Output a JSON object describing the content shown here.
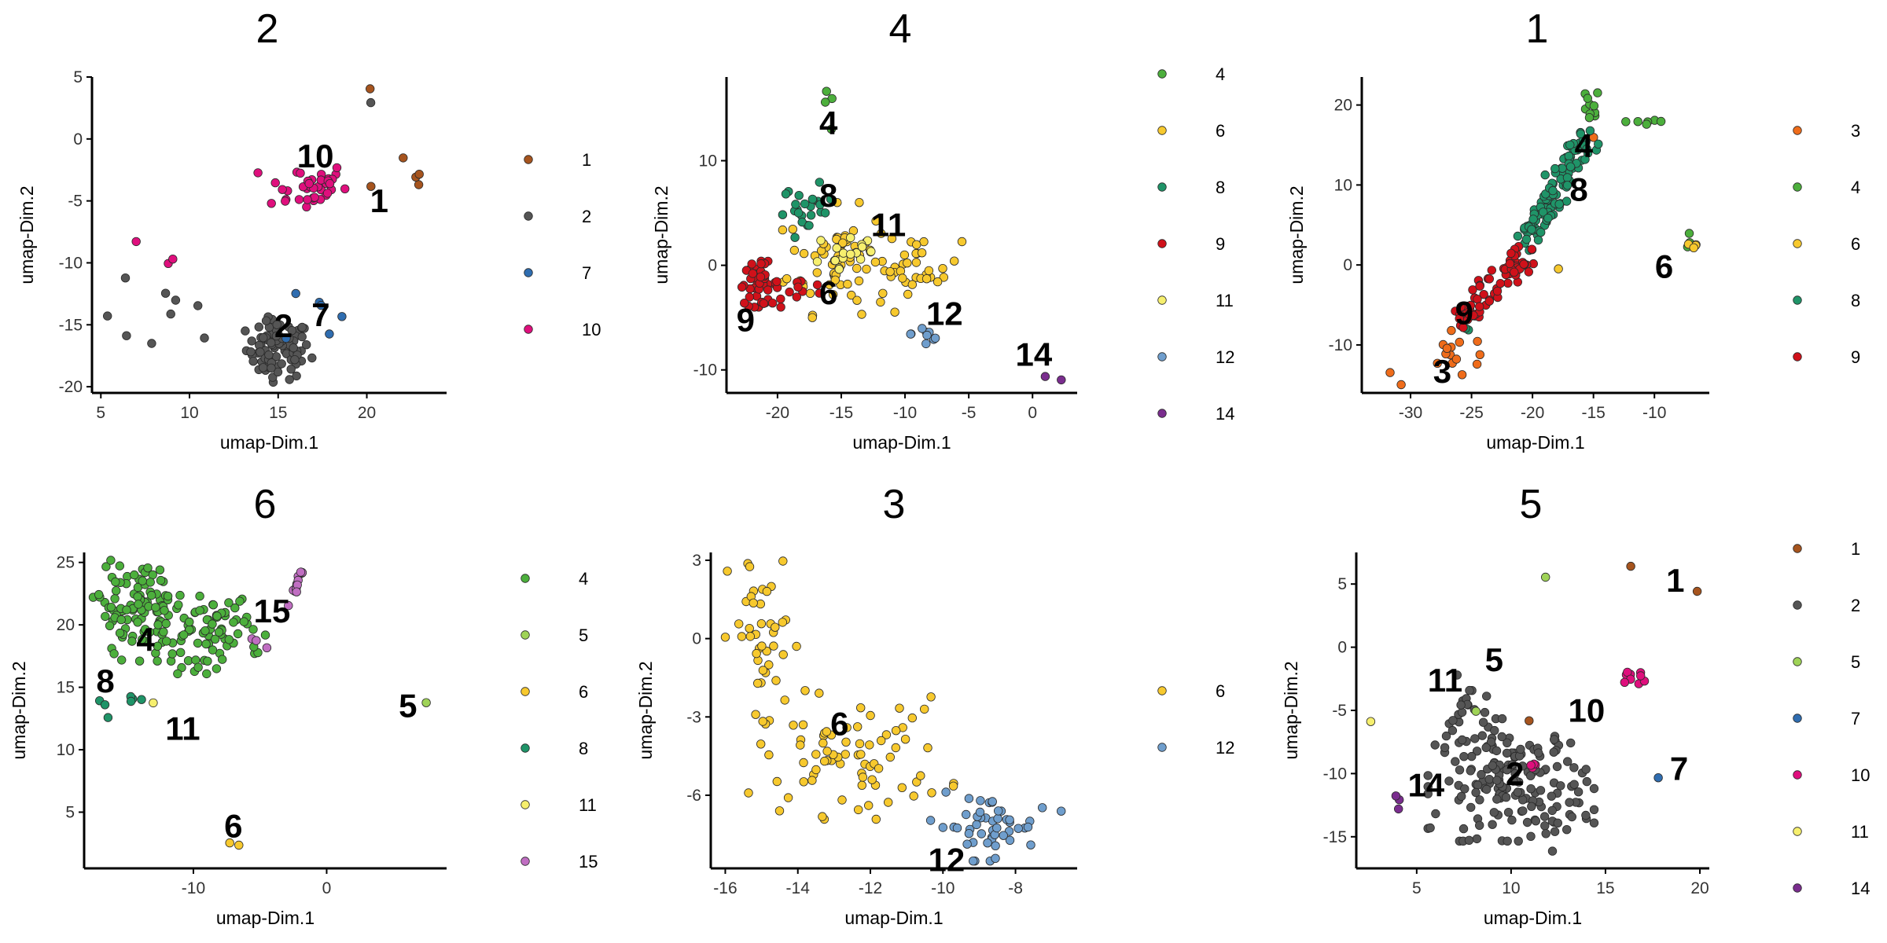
{
  "colors": {
    "1": "#a6541e",
    "2": "#555555",
    "3": "#ef6c1a",
    "4": "#4caf3c",
    "5": "#9fd357",
    "6": "#f7c92e",
    "7": "#2f6db0",
    "8": "#1f9468",
    "9": "#d0111a",
    "10": "#df0f7d",
    "11": "#f6ef6e",
    "12": "#6f9ecd",
    "14": "#7a2d8e",
    "15": "#c06ec2"
  },
  "chart_data": [
    {
      "type": "scatter",
      "title": "2",
      "xlabel": "umap-Dim.1",
      "ylabel": "umap-Dim.2",
      "xlim": [
        4.5,
        24.5
      ],
      "ylim": [
        -20.5,
        5
      ],
      "xticks": [
        5,
        10,
        15,
        20
      ],
      "yticks": [
        5,
        0,
        -5,
        -10,
        -15,
        -20
      ],
      "legend": [
        "1",
        "2",
        "7",
        "10"
      ],
      "labels": [
        {
          "text": "10",
          "x": 17.1,
          "y": -2.3
        },
        {
          "text": "1",
          "x": 20.7,
          "y": -5.9
        },
        {
          "text": "2",
          "x": 15.3,
          "y": -16.0
        },
        {
          "text": "7",
          "x": 17.4,
          "y": -15.1
        }
      ],
      "series": [
        {
          "name": "1",
          "clusters": [
            {
              "cx": 20.2,
              "cy": 4.0,
              "sx": 0.05,
              "sy": 0.05,
              "n": 1
            },
            {
              "cx": 22.5,
              "cy": -3.2,
              "sx": 1.1,
              "sy": 1.2,
              "n": 5
            }
          ]
        },
        {
          "name": "2",
          "clusters": [
            {
              "cx": 15.0,
              "cy": -17.0,
              "sx": 0.9,
              "sy": 1.2,
              "n": 90
            },
            {
              "cx": 8.5,
              "cy": -14.7,
              "sx": 1.8,
              "sy": 1.6,
              "n": 9
            },
            {
              "cx": 20.2,
              "cy": 3.0,
              "sx": 0.05,
              "sy": 0.05,
              "n": 1
            }
          ]
        },
        {
          "name": "7",
          "clusters": [
            {
              "cx": 18.3,
              "cy": -14.0,
              "sx": 1.5,
              "sy": 1.4,
              "n": 6
            }
          ]
        },
        {
          "name": "10",
          "clusters": [
            {
              "cx": 16.5,
              "cy": -3.8,
              "sx": 1.2,
              "sy": 1.0,
              "n": 38
            },
            {
              "cx": 9.5,
              "cy": -9.5,
              "sx": 2.5,
              "sy": 1.5,
              "n": 3
            }
          ]
        }
      ]
    },
    {
      "type": "scatter",
      "title": "4",
      "xlabel": "umap-Dim.1",
      "ylabel": "umap-Dim.2",
      "xlim": [
        -24,
        3.5
      ],
      "ylim": [
        -12.2,
        18
      ],
      "xticks": [
        -20,
        -15,
        -10,
        -5,
        0
      ],
      "yticks": [
        10,
        0,
        -10
      ],
      "legend": [
        "4",
        "6",
        "8",
        "9",
        "11",
        "12",
        "14"
      ],
      "labels": [
        {
          "text": "4",
          "x": -16.0,
          "y": 12.5
        },
        {
          "text": "8",
          "x": -16.0,
          "y": 5.6
        },
        {
          "text": "11",
          "x": -11.3,
          "y": 2.8
        },
        {
          "text": "6",
          "x": -16.0,
          "y": -3.7
        },
        {
          "text": "9",
          "x": -22.5,
          "y": -6.3
        },
        {
          "text": "12",
          "x": -6.9,
          "y": -5.7
        },
        {
          "text": "14",
          "x": 0.1,
          "y": -9.6
        }
      ],
      "series": [
        {
          "name": "4",
          "clusters": [
            {
              "cx": -15.7,
              "cy": 15.0,
              "sx": 0.6,
              "sy": 1.6,
              "n": 4
            }
          ]
        },
        {
          "name": "6",
          "clusters": [
            {
              "cx": -15.2,
              "cy": 0.5,
              "sx": 2.0,
              "sy": 2.5,
              "n": 70
            },
            {
              "cx": -8.8,
              "cy": 0.0,
              "sx": 1.6,
              "sy": 1.3,
              "n": 30
            }
          ]
        },
        {
          "name": "8",
          "clusters": [
            {
              "cx": -17.6,
              "cy": 5.3,
              "sx": 1.0,
              "sy": 1.2,
              "n": 24
            }
          ]
        },
        {
          "name": "9",
          "clusters": [
            {
              "cx": -21.5,
              "cy": -1.8,
              "sx": 0.8,
              "sy": 1.0,
              "n": 45
            },
            {
              "cx": -18.0,
              "cy": -2.5,
              "sx": 1.2,
              "sy": 0.6,
              "n": 10
            }
          ]
        },
        {
          "name": "11",
          "clusters": [
            {
              "cx": -14.5,
              "cy": 1.2,
              "sx": 1.5,
              "sy": 1.4,
              "n": 18
            }
          ]
        },
        {
          "name": "12",
          "clusters": [
            {
              "cx": -8.3,
              "cy": -6.5,
              "sx": 0.6,
              "sy": 0.9,
              "n": 9
            }
          ]
        },
        {
          "name": "14",
          "clusters": [
            {
              "cx": 2.3,
              "cy": -10.9,
              "sx": 0.05,
              "sy": 0.05,
              "n": 1
            },
            {
              "cx": 1.0,
              "cy": -10.6,
              "sx": 0.05,
              "sy": 0.05,
              "n": 1
            }
          ]
        }
      ]
    },
    {
      "type": "scatter",
      "title": "1",
      "xlabel": "umap-Dim.1",
      "ylabel": "umap-Dim.2",
      "xlim": [
        -34,
        -5.5
      ],
      "ylim": [
        -16,
        23.5
      ],
      "xticks": [
        -30,
        -25,
        -20,
        -15,
        -10
      ],
      "yticks": [
        20,
        10,
        0,
        -10
      ],
      "legend": [
        "3",
        "4",
        "6",
        "8",
        "9"
      ],
      "labels": [
        {
          "text": "4",
          "x": -15.8,
          "y": 13.5
        },
        {
          "text": "8",
          "x": -16.2,
          "y": 8.0
        },
        {
          "text": "6",
          "x": -9.2,
          "y": -1.6
        },
        {
          "text": "9",
          "x": -25.6,
          "y": -7.4
        },
        {
          "text": "3",
          "x": -27.4,
          "y": -14.7
        }
      ],
      "series": [
        {
          "name": "3",
          "clusters": [
            {
              "cx": -26.0,
              "cy": -11.5,
              "sx": 1.5,
              "sy": 1.5,
              "n": 14
            },
            {
              "cx": -31.5,
              "cy": -14.3,
              "sx": 0.8,
              "sy": 0.4,
              "n": 2
            },
            {
              "cx": -15.2,
              "cy": 16.0,
              "sx": 0.4,
              "sy": 0.3,
              "n": 2
            }
          ]
        },
        {
          "name": "4",
          "clusters": [
            {
              "cx": -15.3,
              "cy": 19.5,
              "sx": 0.4,
              "sy": 1.3,
              "n": 10
            },
            {
              "cx": -11.5,
              "cy": 17.7,
              "sx": 1.3,
              "sy": 0.3,
              "n": 6
            },
            {
              "cx": -7.0,
              "cy": 3.0,
              "sx": 0.3,
              "sy": 0.5,
              "n": 3
            }
          ]
        },
        {
          "name": "6",
          "clusters": [
            {
              "cx": -6.8,
              "cy": 2.3,
              "sx": 0.3,
              "sy": 0.2,
              "n": 4
            },
            {
              "cx": -17.8,
              "cy": -0.5,
              "sx": 0.05,
              "sy": 0.05,
              "n": 1
            }
          ]
        },
        {
          "name": "8",
          "line": {
            "x0": -20.5,
            "y0": 3.0,
            "x1": -15.5,
            "y1": 16.0,
            "spread": 1.0,
            "n": 110
          },
          "clusters": [
            {
              "cx": -25.5,
              "cy": -8.0,
              "sx": 0.3,
              "sy": 0.5,
              "n": 2
            }
          ]
        },
        {
          "name": "9",
          "line": {
            "x0": -26.0,
            "y0": -7.0,
            "x1": -20.5,
            "y1": 1.5,
            "spread": 0.9,
            "n": 80
          }
        }
      ]
    },
    {
      "type": "scatter",
      "title": "6",
      "xlabel": "umap-Dim.1",
      "ylabel": "umap-Dim.2",
      "xlim": [
        -18.2,
        9
      ],
      "ylim": [
        0.5,
        25.8
      ],
      "xticks": [
        -10,
        0
      ],
      "yticks": [
        25,
        20,
        15,
        10,
        5
      ],
      "legend": [
        "4",
        "5",
        "6",
        "8",
        "11",
        "15"
      ],
      "labels": [
        {
          "text": "15",
          "x": -4.1,
          "y": 20.2
        },
        {
          "text": "4",
          "x": -13.6,
          "y": 17.9
        },
        {
          "text": "8",
          "x": -16.6,
          "y": 14.6
        },
        {
          "text": "11",
          "x": -10.8,
          "y": 10.8
        },
        {
          "text": "5",
          "x": 6.1,
          "y": 12.6
        },
        {
          "text": "6",
          "x": -7.0,
          "y": 3.0
        }
      ],
      "series": [
        {
          "name": "4",
          "clusters": [
            {
              "cx": -14.0,
              "cy": 21.5,
              "sx": 1.6,
              "sy": 2.0,
              "n": 100
            },
            {
              "cx": -9.0,
              "cy": 19.0,
              "sx": 2.0,
              "sy": 1.5,
              "n": 80
            }
          ]
        },
        {
          "name": "5",
          "clusters": [
            {
              "cx": 7.5,
              "cy": 13.8,
              "sx": 0.05,
              "sy": 0.05,
              "n": 1
            }
          ]
        },
        {
          "name": "6",
          "clusters": [
            {
              "cx": -7.0,
              "cy": 2.4,
              "sx": 0.3,
              "sy": 0.1,
              "n": 2
            }
          ]
        },
        {
          "name": "8",
          "clusters": [
            {
              "cx": -16.6,
              "cy": 13.0,
              "sx": 0.2,
              "sy": 0.7,
              "n": 3
            },
            {
              "cx": -14.5,
              "cy": 14.0,
              "sx": 0.6,
              "sy": 0.3,
              "n": 4
            }
          ]
        },
        {
          "name": "11",
          "clusters": [
            {
              "cx": -13.0,
              "cy": 13.7,
              "sx": 0.05,
              "sy": 0.05,
              "n": 1
            }
          ]
        },
        {
          "name": "15",
          "line": {
            "x0": -3.2,
            "y0": 21.5,
            "x1": -1.8,
            "y1": 24.0,
            "spread": 0.25,
            "n": 14
          },
          "clusters": [
            {
              "cx": -5.5,
              "cy": 18.6,
              "sx": 0.5,
              "sy": 0.2,
              "n": 3
            }
          ]
        }
      ]
    },
    {
      "type": "scatter",
      "title": "3",
      "xlabel": "umap-Dim.1",
      "ylabel": "umap-Dim.2",
      "xlim": [
        -16.4,
        -6.3
      ],
      "ylim": [
        -8.8,
        3.3
      ],
      "xticks": [
        -16,
        -14,
        -12,
        -10,
        -8
      ],
      "yticks": [
        3,
        0,
        -3,
        -6
      ],
      "legend": [
        "6",
        "12"
      ],
      "labels": [
        {
          "text": "6",
          "x": -12.85,
          "y": -3.7
        },
        {
          "text": "12",
          "x": -9.9,
          "y": -8.9
        }
      ],
      "series": [
        {
          "name": "6",
          "clusters": [
            {
              "cx": -14.9,
              "cy": -0.2,
              "sx": 0.5,
              "sy": 1.9,
              "n": 45
            },
            {
              "cx": -12.5,
              "cy": -4.5,
              "sx": 1.3,
              "sy": 1.1,
              "n": 75
            }
          ]
        },
        {
          "name": "12",
          "clusters": [
            {
              "cx": -8.8,
              "cy": -7.2,
              "sx": 0.7,
              "sy": 0.6,
              "n": 48
            },
            {
              "cx": -6.7,
              "cy": -6.6,
              "sx": 0.05,
              "sy": 0.05,
              "n": 1
            }
          ]
        }
      ]
    },
    {
      "type": "scatter",
      "title": "5",
      "xlabel": "umap-Dim.1",
      "ylabel": "umap-Dim.2",
      "xlim": [
        1.8,
        20.5
      ],
      "ylim": [
        -17.5,
        7.5
      ],
      "xticks": [
        5,
        10,
        15,
        20
      ],
      "yticks": [
        5,
        0,
        -5,
        -10,
        -15
      ],
      "legend": [
        "1",
        "2",
        "5",
        "7",
        "10",
        "11",
        "14"
      ],
      "labels": [
        {
          "text": "1",
          "x": 18.7,
          "y": 4.4
        },
        {
          "text": "5",
          "x": 9.1,
          "y": -1.9
        },
        {
          "text": "11",
          "x": 6.5,
          "y": -3.5
        },
        {
          "text": "10",
          "x": 14.0,
          "y": -5.9
        },
        {
          "text": "7",
          "x": 18.9,
          "y": -10.5
        },
        {
          "text": "2",
          "x": 10.2,
          "y": -10.9
        },
        {
          "text": "14",
          "x": 5.5,
          "y": -11.8
        }
      ],
      "series": [
        {
          "name": "1",
          "clusters": [
            {
              "cx": 16.3,
              "cy": 6.4,
              "sx": 0.05,
              "sy": 0.05,
              "n": 1
            },
            {
              "cx": 19.8,
              "cy": 4.5,
              "sx": 0.05,
              "sy": 0.05,
              "n": 1
            },
            {
              "cx": 11.0,
              "cy": -5.8,
              "sx": 0.05,
              "sy": 0.05,
              "n": 1
            }
          ]
        },
        {
          "name": "2",
          "clusters": [
            {
              "cx": 10.0,
              "cy": -10.5,
              "sx": 2.0,
              "sy": 2.2,
              "n": 160
            },
            {
              "cx": 7.8,
              "cy": -5.5,
              "sx": 0.6,
              "sy": 1.5,
              "n": 20
            },
            {
              "cx": 12.2,
              "cy": -13.5,
              "sx": 1.0,
              "sy": 1.2,
              "n": 20
            }
          ]
        },
        {
          "name": "5",
          "clusters": [
            {
              "cx": 11.8,
              "cy": 5.5,
              "sx": 0.05,
              "sy": 0.05,
              "n": 1
            },
            {
              "cx": 8.2,
              "cy": -5.0,
              "sx": 0.05,
              "sy": 0.05,
              "n": 1
            }
          ]
        },
        {
          "name": "7",
          "clusters": [
            {
              "cx": 17.8,
              "cy": -10.3,
              "sx": 0.05,
              "sy": 0.05,
              "n": 1
            }
          ]
        },
        {
          "name": "10",
          "clusters": [
            {
              "cx": 16.4,
              "cy": -2.4,
              "sx": 0.4,
              "sy": 0.4,
              "n": 9
            },
            {
              "cx": 11.3,
              "cy": -9.3,
              "sx": 0.3,
              "sy": 0.3,
              "n": 4
            }
          ]
        },
        {
          "name": "11",
          "clusters": [
            {
              "cx": 2.5,
              "cy": -5.9,
              "sx": 0.05,
              "sy": 0.05,
              "n": 1
            }
          ]
        },
        {
          "name": "14",
          "clusters": [
            {
              "cx": 4.0,
              "cy": -11.7,
              "sx": 0.1,
              "sy": 0.5,
              "n": 3
            }
          ]
        }
      ]
    }
  ]
}
